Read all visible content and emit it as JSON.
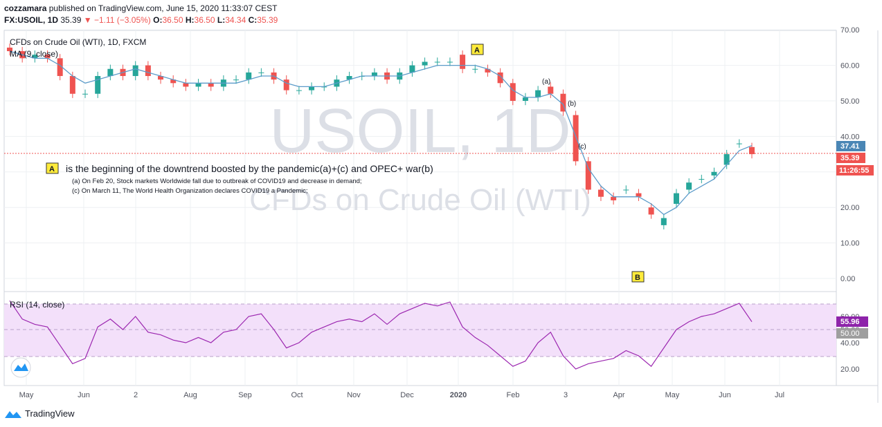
{
  "header": {
    "author": "cozzamara",
    "published_text": "published on TradingView.com, June 15, 2020 11:33:07 CEST",
    "symbol": "FX:USOIL, 1D",
    "last": "35.39",
    "change": "▼ −1.11 (−3.05%)",
    "o_label": "O:",
    "o_value": "36.50",
    "h_label": "H:",
    "h_value": "36.50",
    "l_label": "L:",
    "l_value": "34.34",
    "c_label": "C:",
    "c_value": "35.39"
  },
  "legend": {
    "instrument": "CFDs on Crude Oil (WTI), 1D, FXCM",
    "ma": "MA (9, close)",
    "rsi": "RSI (14, close)"
  },
  "watermark": {
    "big": "USOIL, 1D",
    "small": "CFDs on Crude Oil (WTI)"
  },
  "annotations": {
    "a_box": "A",
    "b_box": "B",
    "a_text": "is the beginning of the downtrend boosted by the pandemic(a)+(c) and OPEC+ war(b)",
    "note_a": "(a) On Feb 20, Stock markets Worldwide fall due to outbreak of COVID19 and decrease in demand;",
    "note_c": "(c) On March 11, The World Health Organization declares COVID19 a Pandemic;",
    "label_a": "(a)",
    "label_b": "(b)",
    "label_c": "(c)"
  },
  "badges": {
    "ma_value": "37.41",
    "last_price": "35.39",
    "countdown": "11:26:55",
    "rsi_value": "55.96",
    "rsi_mid": "50.00"
  },
  "colors": {
    "up": "#26a69a",
    "down": "#ef5350",
    "ma": "#5b9bc9",
    "rsi": "#9c27b0",
    "rsi_band": "#f3e0fa",
    "grid": "#eef0f3",
    "ma_badge": "#4a86b5",
    "rsi_badge": "#8e24aa"
  },
  "brand": "TradingView",
  "chart_data": [
    {
      "type": "candlestick",
      "title": "CFDs on Crude Oil (WTI), 1D, FXCM",
      "x_labels": [
        "May",
        "Jun",
        "2",
        "Aug",
        "Sep",
        "Oct",
        "Nov",
        "Dec",
        "2020",
        "Feb",
        "3",
        "Apr",
        "May",
        "Jun",
        "Jul"
      ],
      "y_ticks": [
        "70.00",
        "60.00",
        "50.00",
        "40.00",
        "30.00",
        "20.00",
        "10.00",
        "0.00"
      ],
      "ylim": [
        -4,
        70
      ],
      "grid": true,
      "x": [
        "2019-04-29",
        "2019-05-06",
        "2019-05-13",
        "2019-05-20",
        "2019-05-27",
        "2019-06-03",
        "2019-06-10",
        "2019-06-17",
        "2019-06-24",
        "2019-07-01",
        "2019-07-08",
        "2019-07-15",
        "2019-07-22",
        "2019-07-29",
        "2019-08-05",
        "2019-08-12",
        "2019-08-19",
        "2019-08-26",
        "2019-09-02",
        "2019-09-09",
        "2019-09-16",
        "2019-09-23",
        "2019-09-30",
        "2019-10-07",
        "2019-10-14",
        "2019-10-21",
        "2019-10-28",
        "2019-11-04",
        "2019-11-11",
        "2019-11-18",
        "2019-11-25",
        "2019-12-02",
        "2019-12-09",
        "2019-12-16",
        "2019-12-23",
        "2019-12-30",
        "2020-01-06",
        "2020-01-13",
        "2020-01-20",
        "2020-01-27",
        "2020-02-03",
        "2020-02-10",
        "2020-02-17",
        "2020-02-24",
        "2020-03-02",
        "2020-03-09",
        "2020-03-16",
        "2020-03-23",
        "2020-03-30",
        "2020-04-06",
        "2020-04-13",
        "2020-04-20",
        "2020-04-27",
        "2020-05-04",
        "2020-05-11",
        "2020-05-18",
        "2020-05-25",
        "2020-06-01",
        "2020-06-08",
        "2020-06-15"
      ],
      "series": [
        {
          "name": "CFDs on Crude Oil (WTI), 1D, FXCM",
          "close": [
            64,
            62,
            63,
            62,
            57,
            52,
            52,
            57,
            59,
            57,
            60,
            57,
            56,
            55,
            54,
            55,
            54,
            56,
            56,
            58,
            58,
            56,
            53,
            53,
            54,
            54,
            56,
            57,
            57,
            58,
            56,
            58,
            60,
            61,
            61,
            61,
            59,
            59,
            58,
            55,
            50,
            51,
            53,
            52,
            47,
            33,
            25,
            23,
            22,
            25,
            23,
            18,
            17,
            24,
            27,
            28,
            30,
            35,
            38,
            35
          ],
          "open": [
            65,
            64,
            62,
            63,
            62,
            57,
            52,
            52,
            57,
            59,
            57,
            60,
            57,
            56,
            55,
            54,
            55,
            54,
            56,
            56,
            58,
            58,
            56,
            53,
            53,
            54,
            54,
            56,
            57,
            57,
            58,
            56,
            58,
            60,
            61,
            61,
            63,
            59,
            59,
            58,
            55,
            50,
            51,
            54,
            52,
            46,
            33,
            25,
            23,
            25,
            24,
            20,
            15,
            21,
            25,
            28,
            29,
            32,
            38,
            37
          ]
        },
        {
          "name": "MA (9, close)",
          "values": [
            64,
            63,
            62,
            62,
            60,
            57,
            55,
            56,
            57,
            58,
            59,
            58,
            57,
            56,
            55,
            55,
            55,
            55,
            55,
            56,
            57,
            57,
            55,
            54,
            54,
            54,
            55,
            56,
            57,
            57,
            57,
            57,
            58,
            59,
            60,
            60,
            60,
            60,
            59,
            57,
            53,
            51,
            51,
            52,
            49,
            40,
            31,
            26,
            23,
            23,
            23,
            21,
            18,
            20,
            24,
            26,
            28,
            32,
            36,
            37.41
          ]
        }
      ]
    },
    {
      "type": "line",
      "title": "RSI (14, close)",
      "y_ticks": [
        "60.00",
        "50.00",
        "40.00",
        "20.00"
      ],
      "ylim": [
        14,
        76
      ],
      "band": [
        30,
        70
      ],
      "x": [
        "2019-04-29",
        "2019-05-06",
        "2019-05-13",
        "2019-05-20",
        "2019-05-27",
        "2019-06-03",
        "2019-06-10",
        "2019-06-17",
        "2019-06-24",
        "2019-07-01",
        "2019-07-08",
        "2019-07-15",
        "2019-07-22",
        "2019-07-29",
        "2019-08-05",
        "2019-08-12",
        "2019-08-19",
        "2019-08-26",
        "2019-09-02",
        "2019-09-09",
        "2019-09-16",
        "2019-09-23",
        "2019-09-30",
        "2019-10-07",
        "2019-10-14",
        "2019-10-21",
        "2019-10-28",
        "2019-11-04",
        "2019-11-11",
        "2019-11-18",
        "2019-11-25",
        "2019-12-02",
        "2019-12-09",
        "2019-12-16",
        "2019-12-23",
        "2019-12-30",
        "2020-01-06",
        "2020-01-13",
        "2020-01-20",
        "2020-01-27",
        "2020-02-03",
        "2020-02-10",
        "2020-02-17",
        "2020-02-24",
        "2020-03-02",
        "2020-03-09",
        "2020-03-16",
        "2020-03-23",
        "2020-03-30",
        "2020-04-06",
        "2020-04-13",
        "2020-04-20",
        "2020-04-27",
        "2020-05-04",
        "2020-05-11",
        "2020-05-18",
        "2020-05-25",
        "2020-06-01",
        "2020-06-08",
        "2020-06-15"
      ],
      "series": [
        {
          "name": "RSI (14, close)",
          "values": [
            72,
            58,
            54,
            52,
            38,
            24,
            28,
            52,
            58,
            50,
            60,
            48,
            46,
            42,
            40,
            44,
            40,
            48,
            50,
            60,
            62,
            50,
            36,
            40,
            48,
            52,
            56,
            58,
            56,
            62,
            54,
            62,
            66,
            70,
            68,
            71,
            52,
            44,
            38,
            30,
            22,
            26,
            40,
            48,
            30,
            20,
            24,
            26,
            28,
            34,
            30,
            22,
            36,
            50,
            56,
            60,
            62,
            66,
            70,
            55.96
          ]
        }
      ]
    }
  ]
}
